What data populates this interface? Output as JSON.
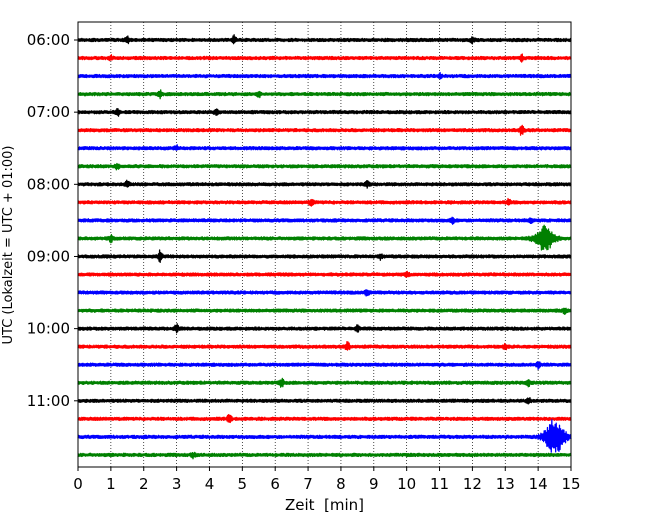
{
  "chart_data": {
    "type": "line",
    "title": "",
    "xlabel": "Zeit  [min]",
    "ylabel": "UTC (Lokalzeit = UTC + 01:00)",
    "xlim": [
      0,
      15
    ],
    "x_ticks": [
      "0",
      "1",
      "2",
      "3",
      "4",
      "5",
      "6",
      "7",
      "8",
      "9",
      "10",
      "11",
      "12",
      "13",
      "14",
      "15"
    ],
    "y_tick_labels": [
      "06:00",
      "07:00",
      "08:00",
      "09:00",
      "10:00",
      "11:00"
    ],
    "grid": "vertical dotted at each minute",
    "row_interval_minutes": 15,
    "row_colors": [
      "#000000",
      "#ff0000",
      "#0000ff",
      "#008000"
    ],
    "rows": [
      {
        "start": "06:00",
        "bursts": [
          [
            1.5,
            0.3
          ],
          [
            4.75,
            0.4
          ],
          [
            12.0,
            0.3
          ]
        ]
      },
      {
        "start": "06:15",
        "bursts": [
          [
            1.0,
            0.25
          ],
          [
            13.5,
            0.3
          ]
        ]
      },
      {
        "start": "06:30",
        "bursts": [
          [
            11.0,
            0.25
          ]
        ]
      },
      {
        "start": "06:45",
        "bursts": [
          [
            2.5,
            0.35
          ],
          [
            5.5,
            0.3
          ]
        ]
      },
      {
        "start": "07:00",
        "bursts": [
          [
            1.2,
            0.4
          ],
          [
            4.2,
            0.3
          ]
        ]
      },
      {
        "start": "07:15",
        "bursts": [
          [
            13.5,
            0.55
          ]
        ]
      },
      {
        "start": "07:30",
        "bursts": [
          [
            3.0,
            0.25
          ]
        ]
      },
      {
        "start": "07:45",
        "bursts": [
          [
            1.2,
            0.3
          ]
        ]
      },
      {
        "start": "08:00",
        "bursts": [
          [
            1.5,
            0.3
          ],
          [
            8.8,
            0.3
          ]
        ]
      },
      {
        "start": "08:15",
        "bursts": [
          [
            7.1,
            0.35
          ],
          [
            13.1,
            0.3
          ]
        ]
      },
      {
        "start": "08:30",
        "bursts": [
          [
            11.4,
            0.3
          ],
          [
            13.8,
            0.25
          ]
        ]
      },
      {
        "start": "08:45",
        "bursts": [
          [
            1.0,
            0.35
          ],
          [
            14.2,
            1.3
          ]
        ]
      },
      {
        "start": "09:00",
        "bursts": [
          [
            2.5,
            0.6
          ],
          [
            9.2,
            0.3
          ]
        ]
      },
      {
        "start": "09:15",
        "bursts": [
          [
            10.0,
            0.3
          ]
        ]
      },
      {
        "start": "09:30",
        "bursts": [
          [
            8.8,
            0.35
          ]
        ]
      },
      {
        "start": "09:45",
        "bursts": [
          [
            14.8,
            0.3
          ]
        ]
      },
      {
        "start": "10:00",
        "bursts": [
          [
            3.0,
            0.4
          ],
          [
            8.5,
            0.3
          ]
        ]
      },
      {
        "start": "10:15",
        "bursts": [
          [
            8.2,
            0.5
          ],
          [
            13.0,
            0.3
          ]
        ]
      },
      {
        "start": "10:30",
        "bursts": [
          [
            14.0,
            0.35
          ]
        ]
      },
      {
        "start": "10:45",
        "bursts": [
          [
            6.2,
            0.45
          ],
          [
            13.7,
            0.4
          ]
        ]
      },
      {
        "start": "11:00",
        "bursts": [
          [
            13.7,
            0.35
          ]
        ]
      },
      {
        "start": "11:15",
        "bursts": [
          [
            4.6,
            0.45
          ]
        ]
      },
      {
        "start": "11:30",
        "bursts": [
          [
            14.5,
            2.0
          ]
        ]
      },
      {
        "start": "11:45",
        "bursts": [
          [
            3.5,
            0.25
          ]
        ]
      }
    ]
  }
}
